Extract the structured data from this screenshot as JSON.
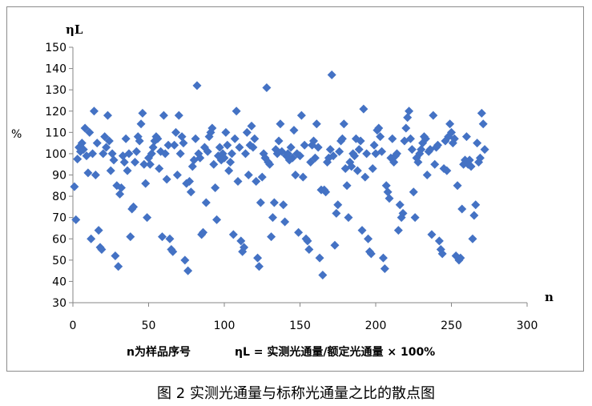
{
  "chart_data": {
    "type": "scatter",
    "y_axis_title": "ηL",
    "y_unit": "%",
    "x_axis_title": "n",
    "note_n": "n为样品序号",
    "note_formula": "ηL = 实测光通量/额定光通量 × 100%",
    "caption": "图 2  实测光通量与标称光通量之比的散点图",
    "xlim": [
      0,
      300
    ],
    "ylim": [
      30,
      150
    ],
    "x_ticks": [
      0,
      50,
      100,
      150,
      200,
      250,
      300
    ],
    "y_ticks": [
      30,
      40,
      50,
      60,
      70,
      80,
      90,
      100,
      110,
      120,
      130,
      140,
      150
    ],
    "marker_color": "#4472C4",
    "marker": "diamond",
    "grid": false,
    "points": [
      [
        1,
        84.5
      ],
      [
        2,
        69
      ],
      [
        3,
        97.5
      ],
      [
        4,
        103
      ],
      [
        5,
        101
      ],
      [
        6,
        105
      ],
      [
        7,
        102
      ],
      [
        8,
        112
      ],
      [
        9,
        99
      ],
      [
        10,
        91
      ],
      [
        11,
        110
      ],
      [
        12,
        60
      ],
      [
        13,
        100
      ],
      [
        14,
        120
      ],
      [
        15,
        90
      ],
      [
        16,
        105
      ],
      [
        17,
        64
      ],
      [
        18,
        56
      ],
      [
        19,
        55
      ],
      [
        20,
        100
      ],
      [
        21,
        108
      ],
      [
        22,
        103
      ],
      [
        23,
        118
      ],
      [
        24,
        106
      ],
      [
        25,
        92
      ],
      [
        26,
        100
      ],
      [
        27,
        97
      ],
      [
        28,
        52
      ],
      [
        29,
        85
      ],
      [
        30,
        47
      ],
      [
        31,
        81
      ],
      [
        32,
        84
      ],
      [
        33,
        99
      ],
      [
        34,
        96
      ],
      [
        35,
        107
      ],
      [
        36,
        92
      ],
      [
        37,
        100
      ],
      [
        38,
        61
      ],
      [
        39,
        74
      ],
      [
        40,
        75
      ],
      [
        41,
        96
      ],
      [
        42,
        101
      ],
      [
        43,
        108
      ],
      [
        44,
        106
      ],
      [
        45,
        114
      ],
      [
        46,
        119
      ],
      [
        47,
        95
      ],
      [
        48,
        86
      ],
      [
        49,
        70
      ],
      [
        50,
        98
      ],
      [
        51,
        95
      ],
      [
        52,
        100
      ],
      [
        53,
        103
      ],
      [
        54,
        106
      ],
      [
        55,
        108
      ],
      [
        56,
        107
      ],
      [
        57,
        93
      ],
      [
        58,
        101
      ],
      [
        59,
        61
      ],
      [
        60,
        118
      ],
      [
        61,
        100
      ],
      [
        62,
        88
      ],
      [
        63,
        104
      ],
      [
        64,
        60
      ],
      [
        65,
        55
      ],
      [
        66,
        54
      ],
      [
        67,
        104
      ],
      [
        68,
        110
      ],
      [
        69,
        90
      ],
      [
        70,
        118
      ],
      [
        71,
        100
      ],
      [
        72,
        108
      ],
      [
        73,
        105
      ],
      [
        74,
        50
      ],
      [
        75,
        86
      ],
      [
        76,
        45
      ],
      [
        77,
        87
      ],
      [
        78,
        82
      ],
      [
        79,
        94
      ],
      [
        80,
        97
      ],
      [
        81,
        107
      ],
      [
        82,
        132
      ],
      [
        83,
        100
      ],
      [
        84,
        98
      ],
      [
        85,
        62
      ],
      [
        86,
        63
      ],
      [
        87,
        103
      ],
      [
        88,
        77
      ],
      [
        89,
        101
      ],
      [
        90,
        108
      ],
      [
        91,
        110
      ],
      [
        92,
        112
      ],
      [
        93,
        95
      ],
      [
        94,
        84
      ],
      [
        95,
        69
      ],
      [
        96,
        99
      ],
      [
        97,
        103
      ],
      [
        98,
        97
      ],
      [
        99,
        100
      ],
      [
        100,
        98
      ],
      [
        101,
        110
      ],
      [
        102,
        104
      ],
      [
        103,
        92
      ],
      [
        104,
        96
      ],
      [
        105,
        100
      ],
      [
        106,
        62
      ],
      [
        107,
        107
      ],
      [
        108,
        120
      ],
      [
        109,
        87
      ],
      [
        110,
        103
      ],
      [
        111,
        59
      ],
      [
        112,
        54
      ],
      [
        113,
        56
      ],
      [
        114,
        100
      ],
      [
        115,
        110
      ],
      [
        116,
        90
      ],
      [
        117,
        104
      ],
      [
        118,
        113
      ],
      [
        119,
        103
      ],
      [
        120,
        107
      ],
      [
        121,
        87
      ],
      [
        122,
        51
      ],
      [
        123,
        47
      ],
      [
        124,
        77
      ],
      [
        125,
        89
      ],
      [
        126,
        100
      ],
      [
        127,
        98
      ],
      [
        128,
        131
      ],
      [
        129,
        96
      ],
      [
        130,
        95
      ],
      [
        131,
        61
      ],
      [
        132,
        70
      ],
      [
        133,
        77
      ],
      [
        134,
        102
      ],
      [
        135,
        100
      ],
      [
        136,
        106
      ],
      [
        137,
        114
      ],
      [
        138,
        101
      ],
      [
        139,
        76
      ],
      [
        140,
        68
      ],
      [
        141,
        99
      ],
      [
        142,
        100
      ],
      [
        143,
        97
      ],
      [
        144,
        103
      ],
      [
        145,
        98
      ],
      [
        146,
        111
      ],
      [
        147,
        90
      ],
      [
        148,
        100
      ],
      [
        149,
        63
      ],
      [
        150,
        99
      ],
      [
        151,
        118
      ],
      [
        152,
        89
      ],
      [
        153,
        104
      ],
      [
        154,
        60
      ],
      [
        155,
        59
      ],
      [
        156,
        55
      ],
      [
        157,
        96
      ],
      [
        158,
        104
      ],
      [
        159,
        106
      ],
      [
        160,
        98
      ],
      [
        161,
        114
      ],
      [
        162,
        103
      ],
      [
        163,
        51
      ],
      [
        164,
        83
      ],
      [
        165,
        43
      ],
      [
        166,
        83
      ],
      [
        167,
        82
      ],
      [
        168,
        96
      ],
      [
        169,
        98
      ],
      [
        170,
        102
      ],
      [
        171,
        137
      ],
      [
        172,
        99
      ],
      [
        173,
        57
      ],
      [
        174,
        72
      ],
      [
        175,
        76
      ],
      [
        176,
        101
      ],
      [
        177,
        106
      ],
      [
        178,
        107
      ],
      [
        179,
        114
      ],
      [
        180,
        93
      ],
      [
        181,
        85
      ],
      [
        182,
        70
      ],
      [
        183,
        96
      ],
      [
        184,
        94
      ],
      [
        185,
        100
      ],
      [
        186,
        99
      ],
      [
        187,
        107
      ],
      [
        188,
        92
      ],
      [
        189,
        102
      ],
      [
        190,
        106
      ],
      [
        191,
        64
      ],
      [
        192,
        121
      ],
      [
        193,
        89
      ],
      [
        194,
        100
      ],
      [
        195,
        60
      ],
      [
        196,
        54
      ],
      [
        197,
        53
      ],
      [
        198,
        93
      ],
      [
        199,
        104
      ],
      [
        200,
        100
      ],
      [
        201,
        111
      ],
      [
        202,
        112
      ],
      [
        203,
        108
      ],
      [
        204,
        101
      ],
      [
        205,
        51
      ],
      [
        206,
        46
      ],
      [
        207,
        85
      ],
      [
        208,
        82
      ],
      [
        209,
        79
      ],
      [
        210,
        98
      ],
      [
        211,
        107
      ],
      [
        212,
        96
      ],
      [
        213,
        99
      ],
      [
        214,
        100
      ],
      [
        215,
        64
      ],
      [
        216,
        76
      ],
      [
        217,
        70
      ],
      [
        218,
        72
      ],
      [
        219,
        106
      ],
      [
        220,
        112
      ],
      [
        221,
        117
      ],
      [
        222,
        120
      ],
      [
        223,
        107
      ],
      [
        224,
        102
      ],
      [
        225,
        82
      ],
      [
        226,
        70
      ],
      [
        227,
        98
      ],
      [
        228,
        96
      ],
      [
        229,
        100
      ],
      [
        230,
        102
      ],
      [
        231,
        105
      ],
      [
        232,
        108
      ],
      [
        233,
        107
      ],
      [
        234,
        90
      ],
      [
        235,
        101
      ],
      [
        236,
        102
      ],
      [
        237,
        62
      ],
      [
        238,
        118
      ],
      [
        239,
        95
      ],
      [
        240,
        103
      ],
      [
        241,
        104
      ],
      [
        242,
        59
      ],
      [
        243,
        55
      ],
      [
        244,
        53
      ],
      [
        245,
        93
      ],
      [
        246,
        106
      ],
      [
        247,
        92
      ],
      [
        248,
        108
      ],
      [
        249,
        114
      ],
      [
        250,
        110
      ],
      [
        251,
        105
      ],
      [
        252,
        107
      ],
      [
        253,
        52
      ],
      [
        254,
        85
      ],
      [
        255,
        50
      ],
      [
        256,
        51
      ],
      [
        257,
        74
      ],
      [
        258,
        95
      ],
      [
        259,
        97
      ],
      [
        260,
        108
      ],
      [
        261,
        95
      ],
      [
        262,
        97
      ],
      [
        263,
        94
      ],
      [
        264,
        60
      ],
      [
        265,
        71
      ],
      [
        266,
        76
      ],
      [
        267,
        105
      ],
      [
        268,
        96
      ],
      [
        269,
        98
      ],
      [
        270,
        119
      ],
      [
        271,
        114
      ],
      [
        272,
        102
      ]
    ]
  }
}
